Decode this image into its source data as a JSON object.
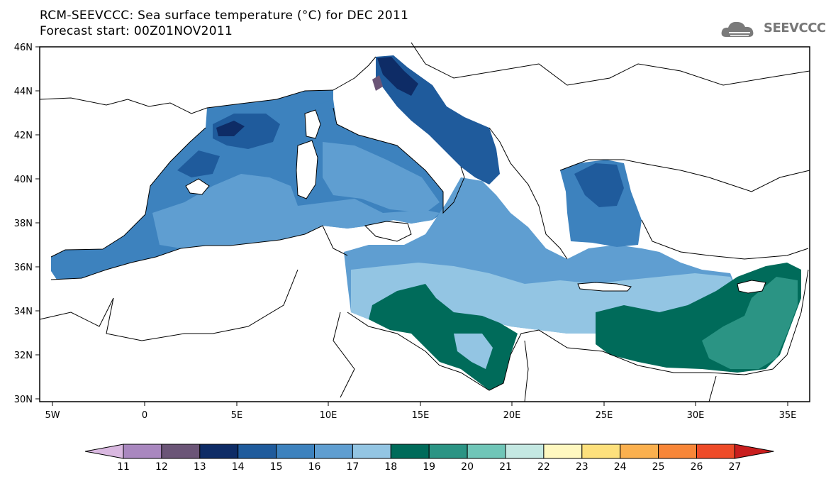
{
  "title": {
    "line1": "RCM-SEEVCCC: Sea surface temperature (°C) for DEC 2011",
    "line2": "Forecast start: 00Z01NOV2011"
  },
  "logo": {
    "text": "SEEVCCC",
    "icon": "cloud-logo-icon"
  },
  "map": {
    "lon_range": [
      -5.5,
      36.5
    ],
    "lat_range": [
      30,
      46
    ],
    "lat_ticks": [
      "30N",
      "32N",
      "34N",
      "36N",
      "38N",
      "40N",
      "42N",
      "44N",
      "46N"
    ],
    "lon_ticks": [
      "5W",
      "0",
      "5E",
      "10E",
      "15E",
      "20E",
      "25E",
      "30E",
      "35E"
    ]
  },
  "colorbar": {
    "labels": [
      "11",
      "12",
      "13",
      "14",
      "15",
      "16",
      "17",
      "18",
      "19",
      "20",
      "21",
      "22",
      "23",
      "24",
      "25",
      "26",
      "27"
    ],
    "colors": [
      "#d9b8e0",
      "#a987bf",
      "#6b5577",
      "#0e2c66",
      "#1f5b9c",
      "#3d82be",
      "#5f9ed1",
      "#93c5e3",
      "#006b5a",
      "#2b9484",
      "#70c6b8",
      "#c4e8e2",
      "#fff8c0",
      "#fde07c",
      "#fbb04e",
      "#f88638",
      "#ee4b28",
      "#c91e1e"
    ]
  },
  "regions": {
    "west_med_sst": "15-16",
    "adriatic_north_sst": "13-14",
    "aegean_north_sst": "14-15",
    "ionian_sst": "16-17",
    "libyan_sea_sst": "18-19",
    "levantine_sst": "19-20"
  }
}
